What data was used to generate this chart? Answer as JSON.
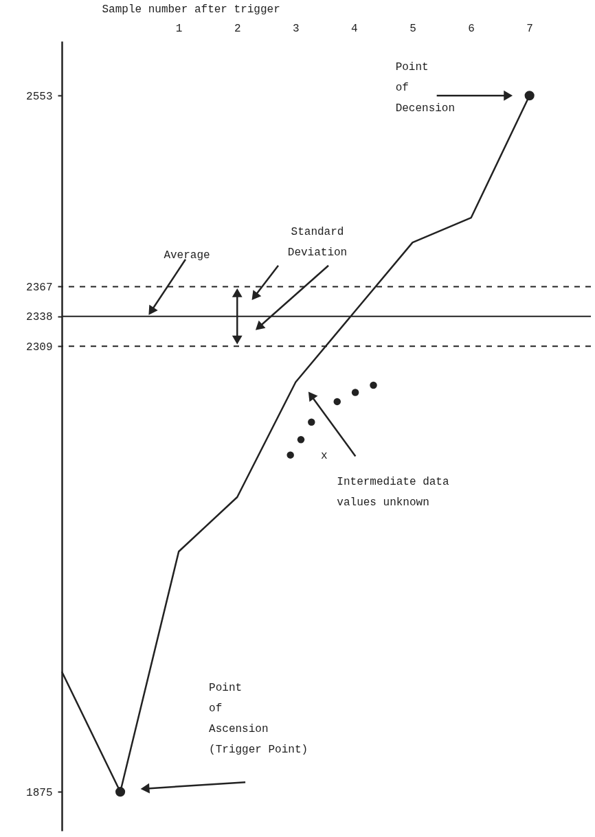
{
  "chart_data": {
    "type": "line",
    "xlabel": "Sample number after trigger",
    "xlim": [
      -1,
      8.05
    ],
    "xticks": [
      1,
      2,
      3,
      4,
      5,
      6,
      7
    ],
    "ylim": [
      1837,
      2606
    ],
    "yticks": [
      1875,
      2309,
      2338,
      2367,
      2553
    ],
    "grid": false,
    "series": [
      {
        "color": "#222222",
        "marker": "none",
        "line_style": "solid",
        "x": [
          -1,
          0,
          1,
          2,
          3,
          5,
          6,
          7
        ],
        "values": [
          1992,
          1875,
          2109,
          2162,
          2274,
          2410,
          2434,
          2553
        ]
      },
      {
        "type": "scatter",
        "color": "#222222",
        "marker": "circle",
        "x": [
          0,
          7
        ],
        "values": [
          1875,
          2553
        ]
      },
      {
        "type": "scatter",
        "color": "#222222",
        "marker": "circle",
        "x": [
          2.91,
          3.09,
          3.27,
          3.71,
          4.02,
          4.33
        ],
        "values": [
          2203,
          2218,
          2235,
          2255,
          2264,
          2271
        ]
      }
    ],
    "ref_lines": [
      {
        "axis": "y",
        "value": 2367,
        "line_style": "dashed",
        "color": "#222222"
      },
      {
        "axis": "y",
        "value": 2338,
        "line_style": "solid",
        "color": "#222222",
        "label": "Average"
      },
      {
        "axis": "y",
        "value": 2309,
        "line_style": "dashed",
        "color": "#222222"
      }
    ],
    "annotations": [
      "Standard\nDeviation",
      "Point\nof\nDecension",
      "Point\nof\nAscension\n(Trigger Point)",
      "Intermediate data\nvalues unknown",
      "x"
    ]
  }
}
